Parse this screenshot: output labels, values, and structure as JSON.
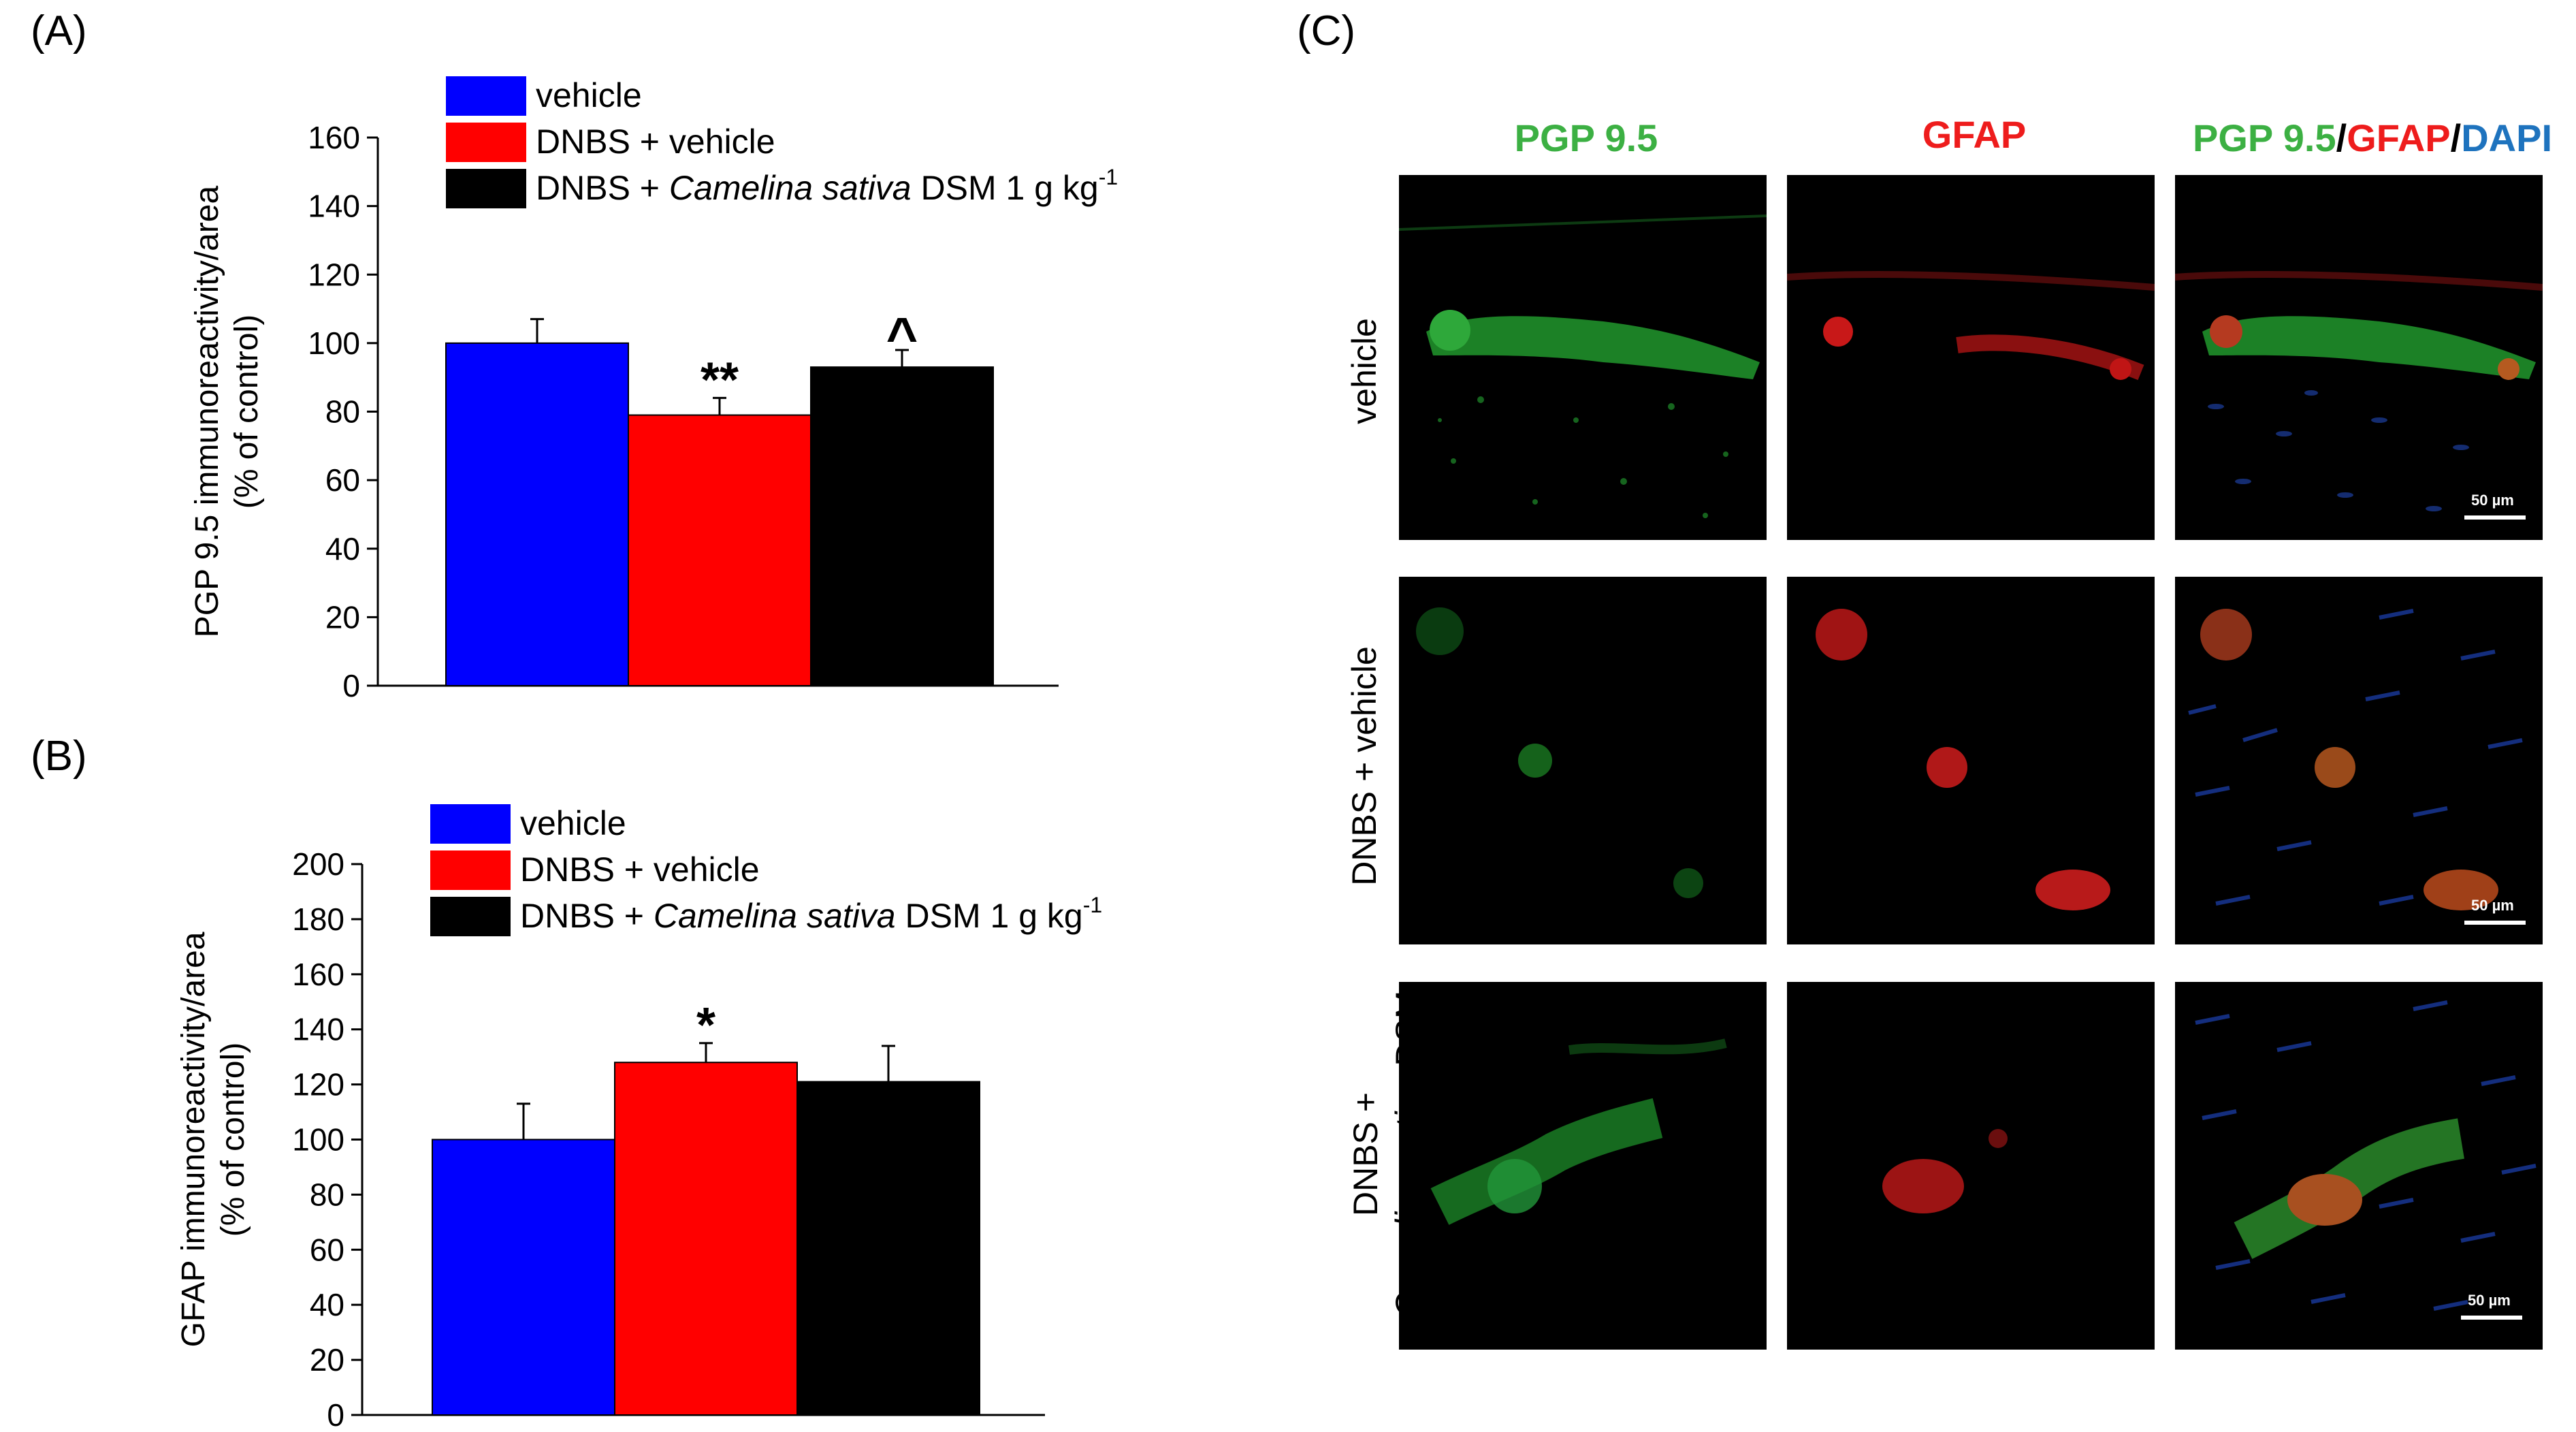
{
  "panels": {
    "a_label": "(A)",
    "b_label": "(B)",
    "c_label": "(C)"
  },
  "chart_data": [
    {
      "type": "bar",
      "categories": [
        "vehicle",
        "DNBS + vehicle",
        "DNBS + Camelina sativa DSM 1 g kg-1"
      ],
      "values": [
        100,
        79,
        93
      ],
      "errors": [
        7,
        5,
        5
      ],
      "significance": [
        "",
        "**",
        "^"
      ],
      "colors": [
        "#0000ff",
        "#ff0000",
        "#000000"
      ],
      "ylabel_line1": "PGP 9.5 immunoreactivity/area",
      "ylabel_line2": "(% of control)",
      "ylim": [
        0,
        160
      ],
      "yticks": [
        0,
        20,
        40,
        60,
        80,
        100,
        120,
        140,
        160
      ],
      "legend": [
        {
          "pre": "vehicle",
          "italic": "",
          "post": "",
          "sup": ""
        },
        {
          "pre": "DNBS + vehicle",
          "italic": "",
          "post": "",
          "sup": ""
        },
        {
          "pre": "DNBS + ",
          "italic": "Camelina sativa",
          "post": " DSM 1 g kg",
          "sup": "-1"
        }
      ]
    },
    {
      "type": "bar",
      "categories": [
        "vehicle",
        "DNBS + vehicle",
        "DNBS + Camelina sativa DSM 1 g kg-1"
      ],
      "values": [
        100,
        128,
        121
      ],
      "errors": [
        13,
        7,
        13
      ],
      "significance": [
        "",
        "*",
        ""
      ],
      "colors": [
        "#0000ff",
        "#ff0000",
        "#000000"
      ],
      "ylabel_line1": "GFAP immunoreactivity/area",
      "ylabel_line2": "(% of control)",
      "ylim": [
        0,
        200
      ],
      "yticks": [
        0,
        20,
        40,
        60,
        80,
        100,
        120,
        140,
        160,
        180,
        200
      ],
      "legend": [
        {
          "pre": "vehicle",
          "italic": "",
          "post": "",
          "sup": ""
        },
        {
          "pre": "DNBS + vehicle",
          "italic": "",
          "post": "",
          "sup": ""
        },
        {
          "pre": "DNBS + ",
          "italic": "Camelina sativa",
          "post": " DSM 1 g kg",
          "sup": "-1"
        }
      ]
    }
  ],
  "micrographs": {
    "columns": {
      "pgp": "PGP 9.5",
      "gfap": "GFAP",
      "merge_pgp": "PGP 9.5",
      "slash1": "/",
      "merge_gfap": "GFAP",
      "slash2": "/",
      "merge_dapi": "DAPI"
    },
    "rows": {
      "r1": "vehicle",
      "r2": "DNBS + vehicle",
      "r3_line1": "DNBS +",
      "r3_italic": "Camelina sativa",
      "r3_post": " DSM"
    },
    "scale_bar": "50 µm",
    "colors": {
      "green": "#3cb043",
      "red": "#ee1c1c",
      "blue": "#1e73be"
    }
  }
}
